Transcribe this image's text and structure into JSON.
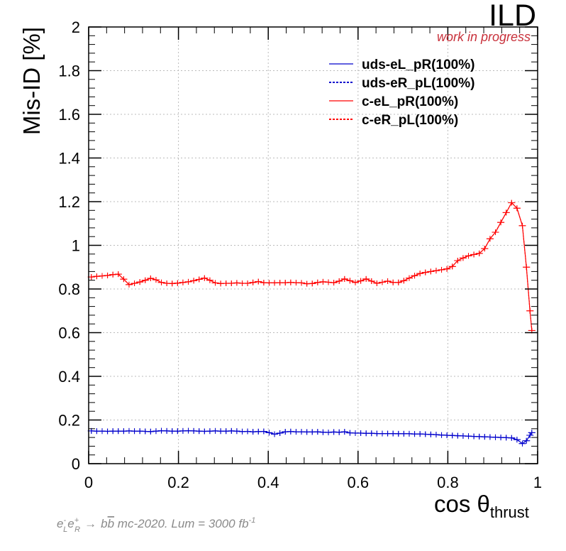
{
  "experiment_label": "ILD",
  "status_label": "work in progress",
  "footnote": {
    "process_prefix": "e",
    "electron_sub": "L",
    "electron_sup": "-",
    "positron_base": "e",
    "positron_sub": "R",
    "positron_sup": "+",
    "arrow": "→",
    "b": "b",
    "bbar": "b",
    "rest": " mc-2020. Lum = 3000 fb",
    "lum_sup": "-1"
  },
  "colors": {
    "blue": "#0000cc",
    "red": "#ff0000",
    "wip": "#c8303a",
    "grid": "#bbbbbb"
  },
  "chart_data": {
    "type": "line",
    "ylabel": "Mis-ID [%]",
    "xlabel_main": "cos θ",
    "xlabel_sub": "thrust",
    "xlim": [
      0,
      1
    ],
    "ylim": [
      0,
      2
    ],
    "xticks": [
      "0",
      "0.2",
      "0.4",
      "0.6",
      "0.8",
      "1"
    ],
    "yticks": [
      "0",
      "0.2",
      "0.4",
      "0.6",
      "0.8",
      "1",
      "1.2",
      "1.4",
      "1.6",
      "1.8",
      "2"
    ],
    "grid": true,
    "legend_position": "top-right",
    "x": [
      0.006,
      0.018,
      0.03,
      0.042,
      0.054,
      0.066,
      0.078,
      0.09,
      0.102,
      0.114,
      0.126,
      0.138,
      0.15,
      0.162,
      0.174,
      0.186,
      0.198,
      0.21,
      0.222,
      0.234,
      0.246,
      0.258,
      0.27,
      0.282,
      0.294,
      0.306,
      0.318,
      0.33,
      0.342,
      0.354,
      0.366,
      0.378,
      0.39,
      0.402,
      0.414,
      0.426,
      0.438,
      0.45,
      0.462,
      0.474,
      0.486,
      0.498,
      0.51,
      0.522,
      0.534,
      0.546,
      0.558,
      0.57,
      0.582,
      0.594,
      0.606,
      0.618,
      0.63,
      0.642,
      0.654,
      0.666,
      0.678,
      0.69,
      0.702,
      0.714,
      0.726,
      0.738,
      0.75,
      0.762,
      0.774,
      0.786,
      0.798,
      0.81,
      0.822,
      0.834,
      0.846,
      0.858,
      0.87,
      0.882,
      0.894,
      0.906,
      0.918,
      0.93,
      0.942,
      0.954,
      0.966,
      0.975,
      0.983,
      0.987
    ],
    "series": [
      {
        "name": "uds-eL_pR(100%)",
        "color": "#0000cc",
        "dash": "solid",
        "values": [
          0.15,
          0.149,
          0.149,
          0.148,
          0.149,
          0.149,
          0.149,
          0.15,
          0.149,
          0.149,
          0.148,
          0.147,
          0.149,
          0.151,
          0.15,
          0.149,
          0.149,
          0.15,
          0.151,
          0.15,
          0.149,
          0.148,
          0.149,
          0.15,
          0.149,
          0.149,
          0.15,
          0.149,
          0.147,
          0.148,
          0.146,
          0.147,
          0.148,
          0.142,
          0.135,
          0.14,
          0.146,
          0.147,
          0.146,
          0.146,
          0.145,
          0.145,
          0.146,
          0.144,
          0.143,
          0.145,
          0.144,
          0.146,
          0.141,
          0.14,
          0.14,
          0.139,
          0.139,
          0.138,
          0.138,
          0.138,
          0.138,
          0.137,
          0.137,
          0.137,
          0.136,
          0.136,
          0.135,
          0.134,
          0.133,
          0.131,
          0.13,
          0.129,
          0.128,
          0.127,
          0.126,
          0.125,
          0.124,
          0.123,
          0.122,
          0.121,
          0.12,
          0.119,
          0.118,
          0.11,
          0.092,
          0.105,
          0.13,
          0.142
        ]
      },
      {
        "name": "uds-eR_pL(100%)",
        "color": "#0000cc",
        "dash": "dotted",
        "values": [
          0.15,
          0.149,
          0.149,
          0.148,
          0.149,
          0.149,
          0.149,
          0.15,
          0.149,
          0.149,
          0.148,
          0.147,
          0.149,
          0.151,
          0.15,
          0.149,
          0.149,
          0.15,
          0.151,
          0.15,
          0.149,
          0.148,
          0.149,
          0.15,
          0.149,
          0.149,
          0.15,
          0.149,
          0.147,
          0.148,
          0.146,
          0.147,
          0.148,
          0.142,
          0.135,
          0.14,
          0.146,
          0.147,
          0.146,
          0.146,
          0.145,
          0.145,
          0.146,
          0.144,
          0.143,
          0.145,
          0.144,
          0.146,
          0.141,
          0.14,
          0.14,
          0.139,
          0.139,
          0.138,
          0.138,
          0.138,
          0.138,
          0.137,
          0.137,
          0.137,
          0.136,
          0.136,
          0.135,
          0.134,
          0.133,
          0.131,
          0.13,
          0.129,
          0.128,
          0.127,
          0.126,
          0.125,
          0.124,
          0.123,
          0.122,
          0.121,
          0.12,
          0.119,
          0.118,
          0.11,
          0.092,
          0.105,
          0.13,
          0.142
        ]
      },
      {
        "name": "c-eL_pR(100%)",
        "color": "#ff0000",
        "dash": "solid",
        "values": [
          0.855,
          0.858,
          0.86,
          0.862,
          0.866,
          0.868,
          0.845,
          0.82,
          0.826,
          0.832,
          0.84,
          0.849,
          0.842,
          0.83,
          0.826,
          0.825,
          0.827,
          0.83,
          0.833,
          0.838,
          0.844,
          0.85,
          0.84,
          0.828,
          0.825,
          0.826,
          0.826,
          0.828,
          0.826,
          0.826,
          0.83,
          0.834,
          0.829,
          0.828,
          0.828,
          0.829,
          0.829,
          0.83,
          0.829,
          0.828,
          0.824,
          0.825,
          0.83,
          0.833,
          0.831,
          0.829,
          0.836,
          0.846,
          0.838,
          0.83,
          0.837,
          0.846,
          0.836,
          0.826,
          0.831,
          0.836,
          0.83,
          0.83,
          0.838,
          0.85,
          0.861,
          0.871,
          0.876,
          0.88,
          0.884,
          0.888,
          0.892,
          0.903,
          0.93,
          0.942,
          0.952,
          0.958,
          0.963,
          0.985,
          1.03,
          1.06,
          1.105,
          1.15,
          1.195,
          1.17,
          1.09,
          0.9,
          0.7,
          0.61
        ]
      },
      {
        "name": "c-eR_pL(100%)",
        "color": "#ff0000",
        "dash": "dotted",
        "values": [
          0.855,
          0.858,
          0.86,
          0.862,
          0.866,
          0.868,
          0.845,
          0.82,
          0.826,
          0.832,
          0.84,
          0.849,
          0.842,
          0.83,
          0.826,
          0.825,
          0.827,
          0.83,
          0.833,
          0.838,
          0.844,
          0.85,
          0.84,
          0.828,
          0.825,
          0.826,
          0.826,
          0.828,
          0.826,
          0.826,
          0.83,
          0.834,
          0.829,
          0.828,
          0.828,
          0.829,
          0.829,
          0.83,
          0.829,
          0.828,
          0.824,
          0.825,
          0.83,
          0.833,
          0.831,
          0.829,
          0.836,
          0.846,
          0.838,
          0.83,
          0.837,
          0.846,
          0.836,
          0.826,
          0.831,
          0.836,
          0.83,
          0.83,
          0.838,
          0.85,
          0.861,
          0.871,
          0.876,
          0.88,
          0.884,
          0.888,
          0.892,
          0.903,
          0.93,
          0.942,
          0.952,
          0.958,
          0.963,
          0.985,
          1.03,
          1.06,
          1.105,
          1.15,
          1.195,
          1.17,
          1.09,
          0.9,
          0.7,
          0.61
        ]
      }
    ]
  }
}
